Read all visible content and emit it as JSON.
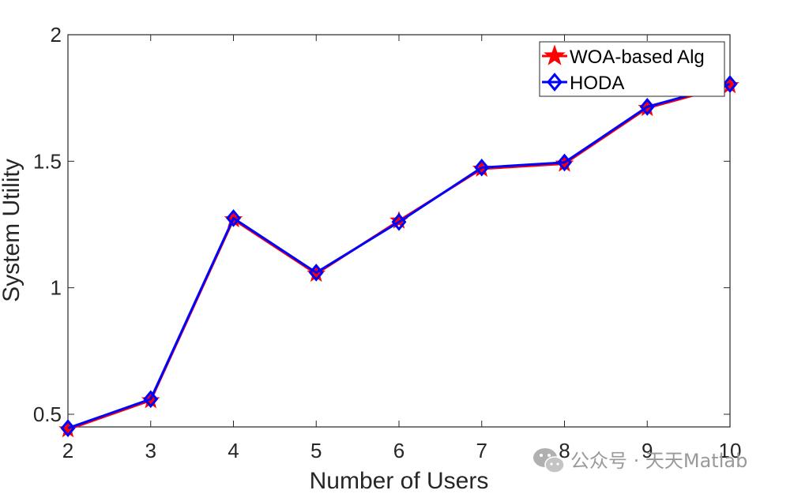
{
  "chart_data": {
    "type": "line",
    "title": "",
    "xlabel": "Number of Users",
    "ylabel": "System Utility",
    "x": [
      2,
      3,
      4,
      5,
      6,
      7,
      8,
      9,
      10
    ],
    "xlim": [
      2,
      10
    ],
    "ylim": [
      0.45,
      2
    ],
    "xticks": [
      "2",
      "3",
      "4",
      "5",
      "6",
      "7",
      "8",
      "9",
      "10"
    ],
    "yticks": [
      "0.5",
      "1",
      "1.5",
      "2"
    ],
    "grid": false,
    "legend_position": "top-right",
    "series": [
      {
        "name": "WOA-based Alg",
        "color": "#ff0000",
        "marker": "star",
        "values": [
          0.44,
          0.555,
          1.27,
          1.055,
          1.265,
          1.47,
          1.49,
          1.71,
          1.8
        ]
      },
      {
        "name": "HODA",
        "color": "#0000ff",
        "marker": "diamond",
        "values": [
          0.445,
          0.56,
          1.275,
          1.06,
          1.26,
          1.475,
          1.495,
          1.715,
          1.805
        ]
      }
    ]
  },
  "watermark": {
    "text": "公众号 · 天天Matlab",
    "icon": "wechat-icon"
  }
}
